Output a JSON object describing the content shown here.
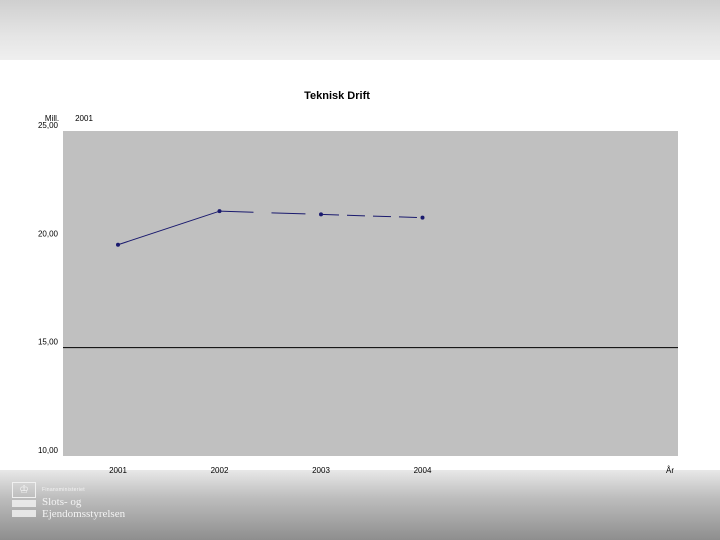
{
  "chart_data": {
    "type": "line",
    "title": "Teknisk Drift",
    "ylabel": "Mill.",
    "ylabel_sub": "2001",
    "xlabel": "År",
    "categories": [
      "2001",
      "2002",
      "2003",
      "2004"
    ],
    "ylim": [
      10,
      25
    ],
    "yticks": [
      "10,00",
      "15,00",
      "20,00",
      "25,00"
    ],
    "reference_line": 15,
    "plot_background": "#c0c0c0",
    "series": [
      {
        "values": [
          19.75,
          21.3,
          21.15,
          21.0
        ],
        "color": "#1a1a6e",
        "segment_styles": [
          "solid",
          "longdash",
          "dash"
        ]
      }
    ],
    "grid": false,
    "legend": "none"
  },
  "logo": {
    "ministry": "Finansministeriet",
    "name_line1": "Slots- og",
    "name_line2": "Ejendomsstyrelsen"
  }
}
